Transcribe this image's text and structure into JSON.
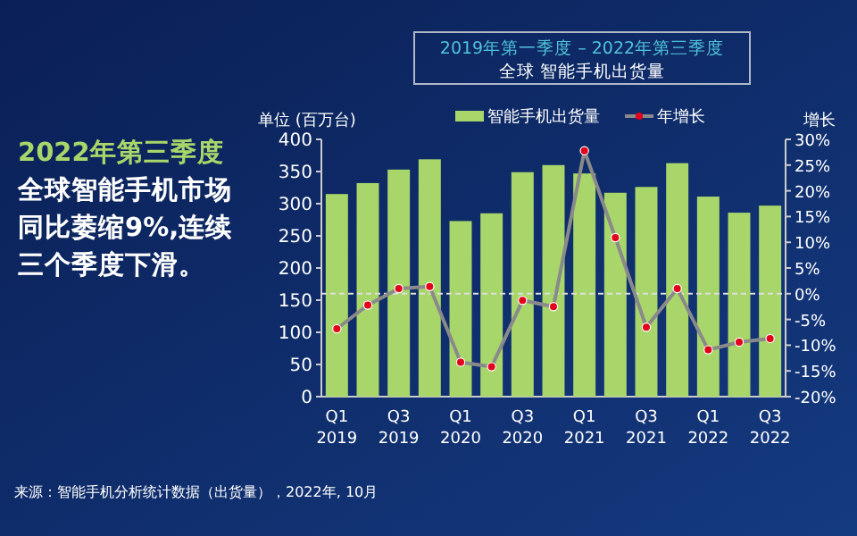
{
  "chart_data": {
    "type": "bar",
    "title": "2019年第一季度 – 2022年第三季度",
    "subtitle": "全球 智能手机出货量",
    "ylabel": "单位 (百万台)",
    "y2label": "增长",
    "categories": [
      "Q1 2019",
      null,
      "Q3 2019",
      null,
      "Q1 2020",
      null,
      "Q3 2020",
      null,
      "Q1 2021",
      null,
      "Q3 2021",
      null,
      "Q1 2022",
      null,
      "Q3 2022"
    ],
    "series": [
      {
        "name": "智能手机出货量",
        "color": "#a9d66a",
        "values": [
          315,
          332,
          353,
          369,
          273,
          285,
          349,
          360,
          347,
          317,
          326,
          363,
          311,
          286,
          297
        ]
      },
      {
        "name": "年增长",
        "type": "line",
        "axis": "y2",
        "color": "#8a8a8a",
        "marker": "circle",
        "values": [
          -6.8,
          -2.2,
          1.0,
          1.4,
          -13.3,
          -14.2,
          -1.3,
          -2.5,
          27.8,
          10.9,
          -6.5,
          1.0,
          -10.9,
          -9.4,
          -8.7
        ]
      }
    ],
    "ylim": [
      0,
      400
    ],
    "yticks": [
      0,
      50,
      100,
      150,
      200,
      250,
      300,
      350,
      400
    ],
    "y2lim": [
      -20,
      30
    ],
    "y2ticks": [
      {
        "value": -20,
        "label": "-20%"
      },
      {
        "value": -15,
        "label": "-15%"
      },
      {
        "value": -10,
        "label": "-10%"
      },
      {
        "value": -5,
        "label": "-5%"
      },
      {
        "value": 0,
        "label": "0%"
      },
      {
        "value": 5,
        "label": "5%"
      },
      {
        "value": 10,
        "label": "10%"
      },
      {
        "value": 15,
        "label": "15%"
      },
      {
        "value": 20,
        "label": "20%"
      },
      {
        "value": 25,
        "label": "25%"
      },
      {
        "value": 30,
        "label": "30%"
      }
    ],
    "ref_lines": [
      {
        "axis": "y2",
        "value": 0,
        "color": "#dddddd",
        "line_style": "dashed"
      }
    ],
    "legend": "top",
    "grid": false,
    "annotations": [
      "2022年第三季度全球智能手机市场同比萎缩9%,连续三个季度下滑。",
      "来源：智能手机分析统计数据（出货量），2022年, 10月"
    ]
  }
}
